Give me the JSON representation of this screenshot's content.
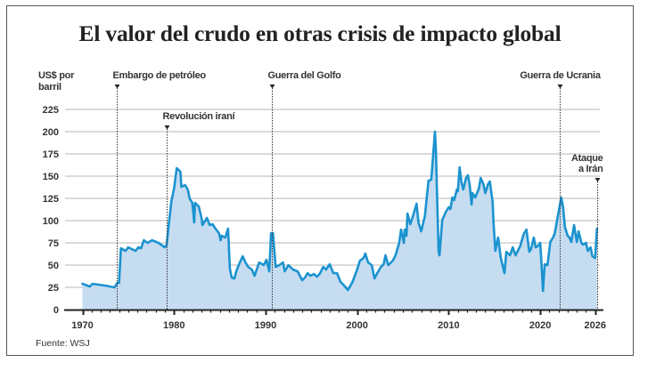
{
  "title": "El valor del crudo en otras crisis de impacto global",
  "source": "Fuente: WSJ",
  "chart_data": {
    "type": "area",
    "title": "El valor del crudo en otras crisis de impacto global",
    "ylabel_lines": [
      "US$ por",
      "barril"
    ],
    "xlabel": "",
    "xlim": [
      1968,
      2027
    ],
    "ylim": [
      0,
      225
    ],
    "yticks": [
      0,
      25,
      50,
      75,
      100,
      125,
      150,
      175,
      200,
      225
    ],
    "xticks": [
      1970,
      1980,
      1990,
      2000,
      2010,
      2020,
      2026
    ],
    "grid": "horizontal",
    "colors": {
      "line": "#1b93cf",
      "fill": "#c6dcf1",
      "grid": "#cfcfcf",
      "axis": "#222222",
      "event_line": "#333333"
    },
    "x": [
      1970.0,
      1970.8,
      1971.1,
      1972.5,
      1973.5,
      1973.8,
      1974.0,
      1974.2,
      1974.7,
      1975.0,
      1975.8,
      1976.1,
      1976.4,
      1976.7,
      1977.1,
      1977.6,
      1978.3,
      1979.0,
      1979.2,
      1979.4,
      1979.7,
      1980.0,
      1980.3,
      1980.5,
      1980.7,
      1980.8,
      1981.2,
      1981.5,
      1981.7,
      1982.0,
      1982.2,
      1982.3,
      1982.7,
      1983.0,
      1983.1,
      1983.6,
      1983.9,
      1984.2,
      1984.6,
      1984.9,
      1985.1,
      1985.2,
      1985.6,
      1985.9,
      1986.1,
      1986.3,
      1986.6,
      1986.8,
      1987.1,
      1987.5,
      1987.8,
      1988.1,
      1988.5,
      1988.8,
      1989.3,
      1989.8,
      1990.1,
      1990.4,
      1990.6,
      1990.8,
      1991.1,
      1991.5,
      1991.9,
      1992.1,
      1992.5,
      1993.0,
      1993.5,
      1994.0,
      1994.3,
      1994.6,
      1994.9,
      1995.3,
      1995.6,
      1995.9,
      1996.3,
      1996.6,
      1997.0,
      1997.4,
      1997.8,
      1998.2,
      1998.5,
      1999.0,
      1999.5,
      2000.0,
      2000.3,
      2000.7,
      2000.9,
      2001.2,
      2001.6,
      2001.9,
      2002.2,
      2002.6,
      2002.9,
      2003.1,
      2003.4,
      2003.9,
      2004.2,
      2004.6,
      2004.8,
      2005.1,
      2005.2,
      2005.4,
      2005.5,
      2005.8,
      2006.1,
      2006.5,
      2006.7,
      2007.0,
      2007.4,
      2007.8,
      2008.1,
      2008.5,
      2008.6,
      2008.9,
      2009.0,
      2009.3,
      2009.4,
      2009.7,
      2010.0,
      2010.2,
      2010.4,
      2010.6,
      2010.9,
      2011.0,
      2011.2,
      2011.4,
      2011.6,
      2011.9,
      2012.1,
      2012.3,
      2012.5,
      2012.6,
      2012.9,
      2013.1,
      2013.3,
      2013.5,
      2013.8,
      2014.0,
      2014.3,
      2014.5,
      2014.8,
      2014.9,
      2015.1,
      2015.4,
      2015.7,
      2016.1,
      2016.3,
      2016.7,
      2017.0,
      2017.3,
      2017.8,
      2018.2,
      2018.5,
      2018.8,
      2019.0,
      2019.3,
      2019.5,
      2019.7,
      2020.0,
      2020.15,
      2020.3,
      2020.5,
      2020.8,
      2021.1,
      2021.4,
      2021.6,
      2021.8,
      2022.1,
      2022.3,
      2022.5,
      2022.7,
      2023.0,
      2023.2,
      2023.4,
      2023.7,
      2024.0,
      2024.2,
      2024.5,
      2024.7,
      2025.0,
      2025.2,
      2025.5,
      2025.7,
      2026.0,
      2026.2
    ],
    "values": [
      29,
      26,
      29,
      27,
      25,
      30,
      30,
      69,
      66,
      70,
      66,
      70,
      69,
      78,
      75,
      78,
      75,
      70,
      73,
      93,
      121,
      136,
      159,
      157,
      155,
      138,
      140,
      135,
      125,
      120,
      98,
      120,
      116,
      103,
      95,
      103,
      95,
      96,
      90,
      86,
      78,
      83,
      81,
      91,
      46,
      36,
      35,
      43,
      51,
      60,
      53,
      48,
      45,
      38,
      53,
      50,
      56,
      43,
      86,
      86,
      48,
      50,
      53,
      43,
      50,
      45,
      43,
      33,
      36,
      41,
      38,
      40,
      37,
      40,
      48,
      45,
      51,
      41,
      41,
      31,
      28,
      22,
      31,
      45,
      55,
      58,
      63,
      53,
      50,
      35,
      41,
      48,
      51,
      61,
      50,
      55,
      61,
      75,
      90,
      75,
      90,
      83,
      108,
      96,
      105,
      119,
      98,
      88,
      105,
      145,
      146,
      200,
      181,
      65,
      61,
      101,
      103,
      110,
      115,
      113,
      126,
      123,
      135,
      133,
      160,
      143,
      135,
      148,
      151,
      140,
      118,
      131,
      126,
      131,
      136,
      148,
      141,
      131,
      141,
      144,
      121,
      98,
      66,
      81,
      58,
      41,
      65,
      61,
      70,
      61,
      71,
      85,
      90,
      65,
      68,
      81,
      70,
      71,
      75,
      51,
      21,
      51,
      50,
      76,
      81,
      86,
      98,
      115,
      126,
      115,
      93,
      83,
      81,
      76,
      95,
      76,
      88,
      75,
      73,
      75,
      66,
      70,
      60,
      58,
      91
    ],
    "events": [
      {
        "label_lines": [
          "Embargo de petróleo"
        ],
        "year": 1973.7,
        "label_align": "left"
      },
      {
        "label_lines": [
          "Revolución iraní"
        ],
        "year": 1979.15,
        "label_align": "left"
      },
      {
        "label_lines": [
          "Guerra del Golfo"
        ],
        "year": 1990.65,
        "label_align": "left"
      },
      {
        "label_lines": [
          "Guerra de Ucrania"
        ],
        "year": 2022.1,
        "label_align": "center"
      },
      {
        "label_lines": [
          "Ataque",
          "a Irán"
        ],
        "year": 2026.2,
        "label_align": "right"
      }
    ]
  }
}
